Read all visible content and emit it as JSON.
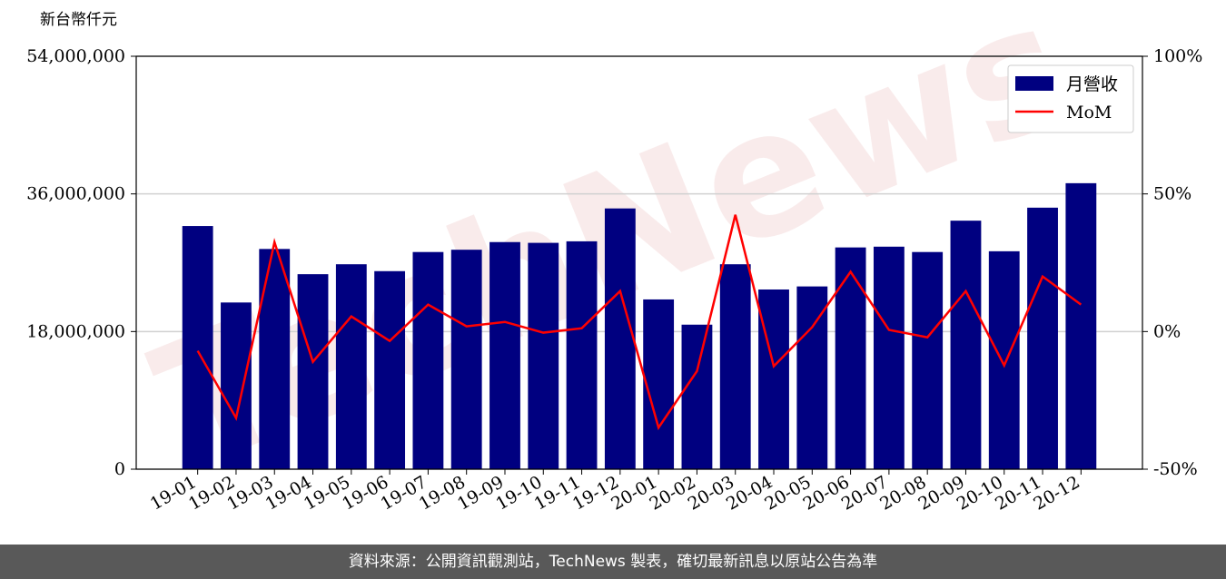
{
  "chart_data": {
    "type": "bar_line",
    "y_axis_label": "新台幣仟元",
    "watermark": "TechNews",
    "categories": [
      "19-01",
      "19-02",
      "19-03",
      "19-04",
      "19-05",
      "19-06",
      "19-07",
      "19-08",
      "19-09",
      "19-10",
      "19-11",
      "19-12",
      "20-01",
      "20-02",
      "20-03",
      "20-04",
      "20-05",
      "20-06",
      "20-07",
      "20-08",
      "20-09",
      "20-10",
      "20-11",
      "20-12"
    ],
    "series": [
      {
        "name": "月營收",
        "color": "#000080",
        "type": "bar",
        "values": [
          31800000,
          21800000,
          28800000,
          25500000,
          26800000,
          25900000,
          28400000,
          28700000,
          29700000,
          29600000,
          29800000,
          34100000,
          22200000,
          18900000,
          26800000,
          23500000,
          23900000,
          29000000,
          29100000,
          28400000,
          32500000,
          28500000,
          34200000,
          37400000
        ]
      },
      {
        "name": "MoM",
        "color": "#ff0000",
        "type": "line",
        "axis": "y2",
        "values": [
          -7,
          -31.4,
          32.5,
          -11,
          5.5,
          -3.4,
          9.8,
          1.9,
          3.5,
          -0.4,
          1.2,
          14.7,
          -34.9,
          -14.4,
          42.4,
          -12.6,
          1.6,
          21.7,
          0.6,
          -2.1,
          14.7,
          -12.3,
          20,
          9.8
        ]
      }
    ],
    "ylim": [
      0,
      54000000
    ],
    "yticks": [
      {
        "value": 0,
        "label": "0"
      },
      {
        "value": 18000000,
        "label": "18,000,000"
      },
      {
        "value": 36000000,
        "label": "36,000,000"
      },
      {
        "value": 54000000,
        "label": "54,000,000"
      }
    ],
    "y2lim": [
      -50,
      100
    ],
    "y2ticks": [
      {
        "value": -50,
        "label": "-50%"
      },
      {
        "value": 0,
        "label": "0%"
      },
      {
        "value": 50,
        "label": "50%"
      },
      {
        "value": 100,
        "label": "100%"
      }
    ],
    "grid": true,
    "legend": "upper right"
  },
  "footer": "資料來源：公開資訊觀測站，TechNews 製表，確切最新訊息以原站公告為準"
}
